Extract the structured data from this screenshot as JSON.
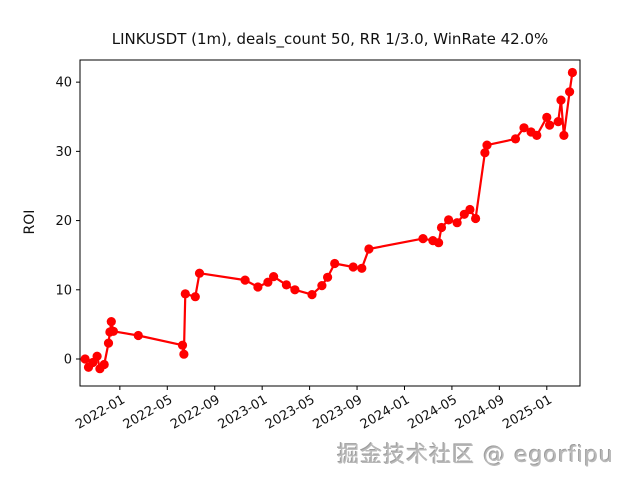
{
  "title": "LINKUSDT (1m), deals_count 50, RR 1/3.0, WinRate 42.0%",
  "watermark": "掘金技术社区 @ egorfipu",
  "colors": {
    "series": "#ff0000",
    "axis": "#000000",
    "tick_label": "#111111",
    "watermark": "#b9b9b9",
    "background": "#ffffff"
  },
  "chart_data": {
    "type": "line",
    "title": "LINKUSDT (1m), deals_count 50, RR 1/3.0, WinRate 42.0%",
    "xlabel": "",
    "ylabel": "ROI",
    "legend": "none",
    "grid": false,
    "marker": "circle",
    "line_color": "#ff0000",
    "marker_color": "#ff0000",
    "xlim": [
      2021.72,
      2025.2333
    ],
    "ylim": [
      -3.9,
      43.2
    ],
    "x_ticks": [
      2022.0,
      2022.3333,
      2022.6667,
      2023.0,
      2023.3333,
      2023.6667,
      2024.0,
      2024.3333,
      2024.6667,
      2025.0
    ],
    "x_tick_labels": [
      "2022-01",
      "2022-05",
      "2022-09",
      "2023-01",
      "2023-05",
      "2023-09",
      "2024-01",
      "2024-05",
      "2024-09",
      "2025-01"
    ],
    "x_tick_rotation": 30,
    "y_ticks": [
      0,
      10,
      20,
      30,
      40
    ],
    "y_tick_labels": [
      "0",
      "10",
      "20",
      "30",
      "40"
    ],
    "points": [
      [
        2021.756,
        0.0
      ],
      [
        2021.78,
        -1.2
      ],
      [
        2021.81,
        -0.5
      ],
      [
        2021.84,
        0.4
      ],
      [
        2021.86,
        -1.4
      ],
      [
        2021.89,
        -0.8
      ],
      [
        2021.92,
        2.3
      ],
      [
        2021.93,
        3.9
      ],
      [
        2021.94,
        5.4
      ],
      [
        2021.955,
        4.0
      ],
      [
        2022.13,
        3.4
      ],
      [
        2022.44,
        2.0
      ],
      [
        2022.45,
        0.7
      ],
      [
        2022.46,
        9.4
      ],
      [
        2022.53,
        9.0
      ],
      [
        2022.56,
        12.4
      ],
      [
        2022.88,
        11.4
      ],
      [
        2022.97,
        10.4
      ],
      [
        2023.04,
        11.1
      ],
      [
        2023.08,
        11.9
      ],
      [
        2023.17,
        10.7
      ],
      [
        2023.23,
        10.0
      ],
      [
        2023.35,
        9.3
      ],
      [
        2023.42,
        10.6
      ],
      [
        2023.46,
        11.8
      ],
      [
        2023.51,
        13.8
      ],
      [
        2023.64,
        13.3
      ],
      [
        2023.7,
        13.1
      ],
      [
        2023.75,
        15.9
      ],
      [
        2024.13,
        17.4
      ],
      [
        2024.2,
        17.1
      ],
      [
        2024.24,
        16.8
      ],
      [
        2024.26,
        19.0
      ],
      [
        2024.31,
        20.1
      ],
      [
        2024.37,
        19.7
      ],
      [
        2024.42,
        20.9
      ],
      [
        2024.46,
        21.6
      ],
      [
        2024.5,
        20.3
      ],
      [
        2024.565,
        29.8
      ],
      [
        2024.58,
        30.9
      ],
      [
        2024.78,
        31.8
      ],
      [
        2024.84,
        33.4
      ],
      [
        2024.89,
        32.8
      ],
      [
        2024.93,
        32.3
      ],
      [
        2025.0,
        34.9
      ],
      [
        2025.02,
        33.8
      ],
      [
        2025.08,
        34.3
      ],
      [
        2025.1,
        37.4
      ],
      [
        2025.12,
        32.3
      ],
      [
        2025.16,
        38.6
      ],
      [
        2025.18,
        41.4
      ]
    ]
  }
}
